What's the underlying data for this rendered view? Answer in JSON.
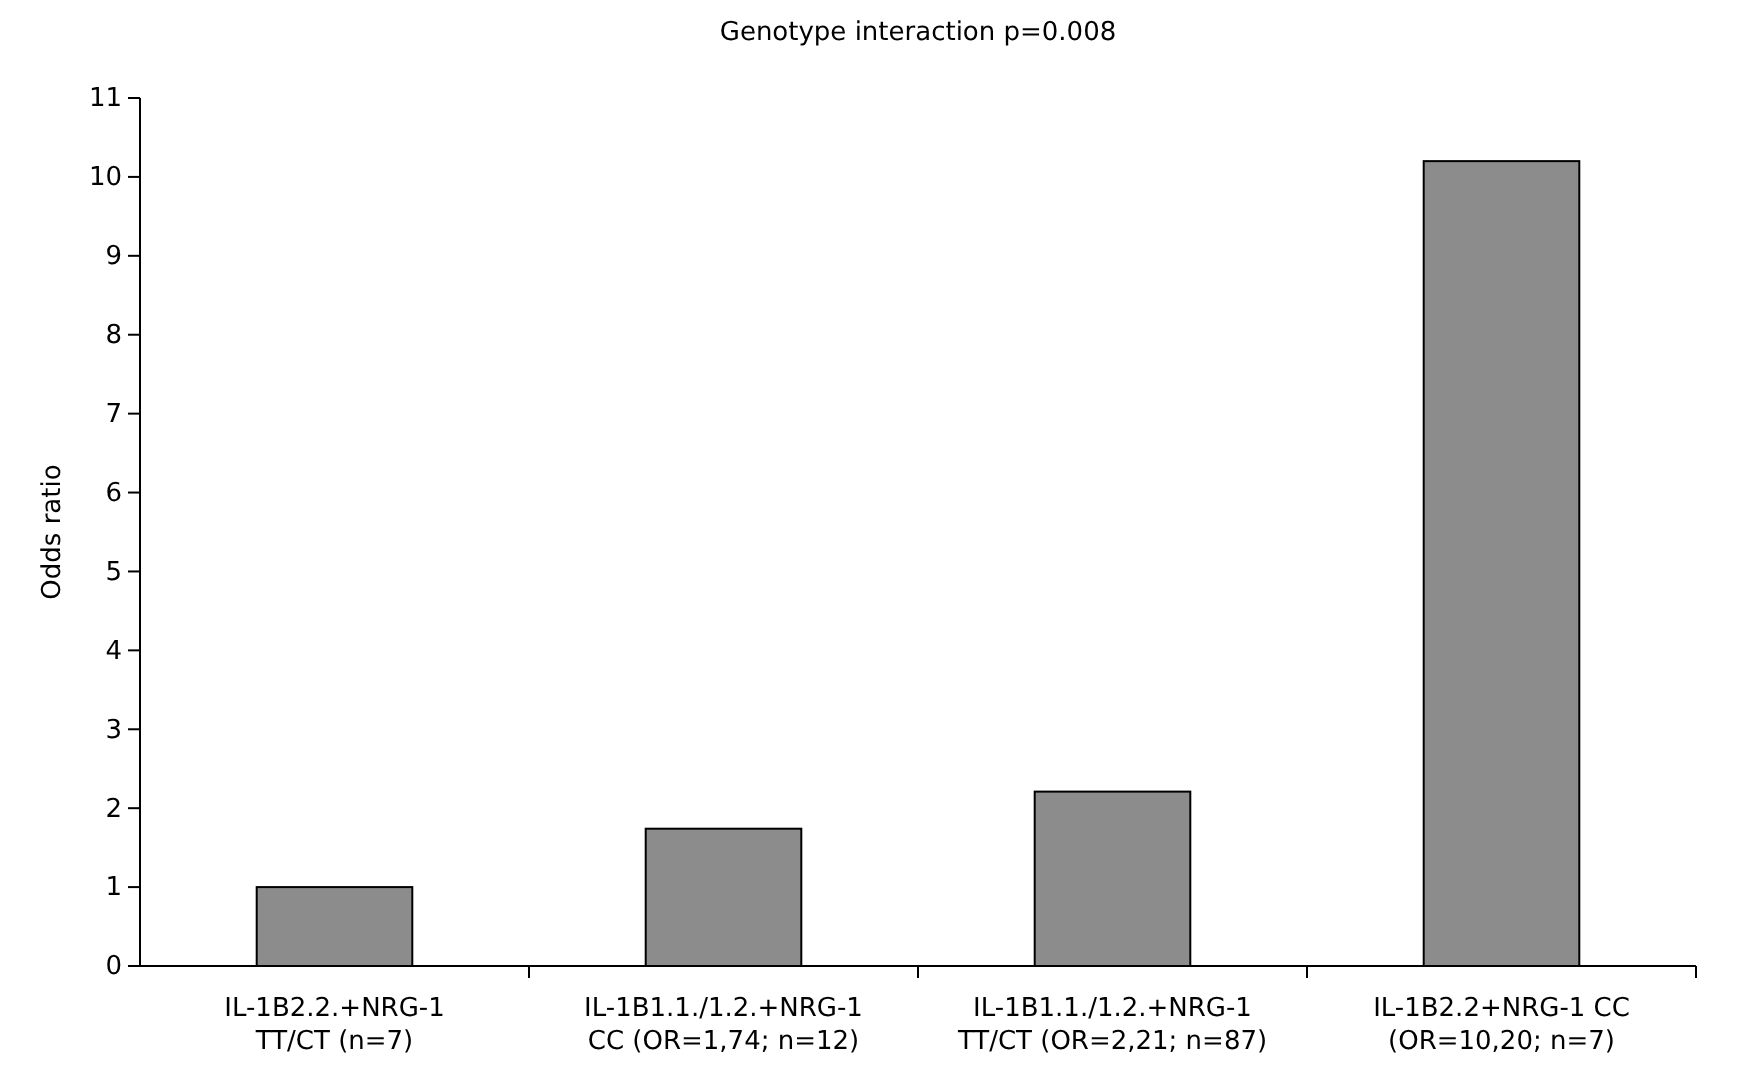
{
  "chart_data": {
    "type": "bar",
    "title": "Genotype interaction p=0.008",
    "ylabel": "Odds ratio",
    "categories": [
      "IL-1B2.2.+NRG-1\nTT/CT (n=7)",
      "IL-1B1.1./1.2.+NRG-1\nCC (OR=1,74; n=12)",
      "IL-1B1.1./1.2.+NRG-1\nTT/CT (OR=2,21; n=87)",
      "IL-1B2.2+NRG-1 CC\n(OR=10,20; n=7)"
    ],
    "values": [
      1,
      1.74,
      2.21,
      10.2
    ],
    "color": "#8c8c8c",
    "ylim": [
      0,
      11
    ],
    "yticks": [
      0,
      1,
      2,
      3,
      4,
      5,
      6,
      7,
      8,
      9,
      10,
      11
    ],
    "grid": false
  }
}
